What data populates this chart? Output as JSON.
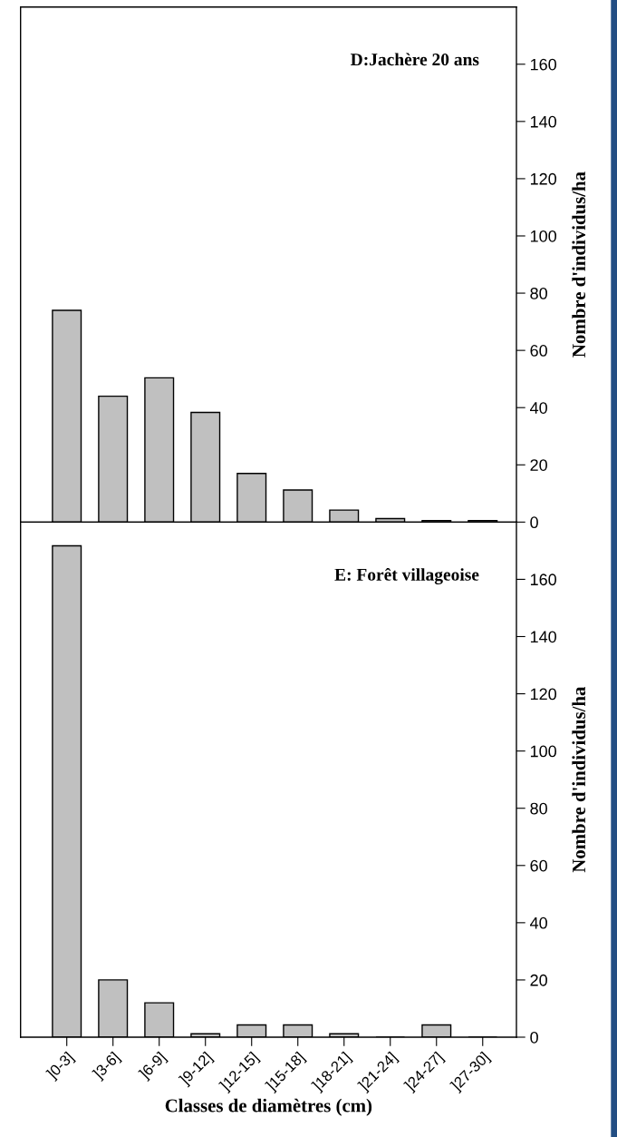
{
  "chart_data": [
    {
      "type": "bar",
      "title": "D:Jachère 20 ans",
      "ylabel": "Nombre d'individus/ha",
      "categories": [
        null,
        null,
        null,
        null,
        null,
        null,
        null,
        null,
        null,
        null
      ],
      "series": [
        {
          "color": "#c0c0c0",
          "values": [
            74,
            44,
            50.4,
            38.3,
            17,
            11.2,
            4.2,
            1.2,
            0.5,
            0.5
          ]
        }
      ],
      "ylim": [
        0,
        180
      ],
      "yticks": [
        0,
        20,
        40,
        60,
        80,
        100,
        120,
        140,
        160
      ],
      "tick_labels": "y",
      "grid": false,
      "legend": false
    },
    {
      "type": "bar",
      "title": "E: Forêt villageoise",
      "ylabel": "Nombre d'individus/ha",
      "xlabel": "Classes de diamètres (cm)",
      "categories": [
        "]0-3]",
        "]3-6]",
        "]6-9]",
        "]9-12]",
        "]12-15]",
        "]15-18]",
        "]18-21]",
        "]21-24]",
        "]24-27]",
        "]27-30]"
      ],
      "series": [
        {
          "color": "#c0c0c0",
          "values": [
            171.7,
            20,
            12,
            1.2,
            4.3,
            4.3,
            1.2,
            0,
            4.3,
            0
          ]
        }
      ],
      "ylim": [
        0,
        180
      ],
      "yticks": [
        0,
        20,
        40,
        60,
        80,
        100,
        120,
        140,
        160
      ],
      "grid": false,
      "legend": false
    }
  ]
}
